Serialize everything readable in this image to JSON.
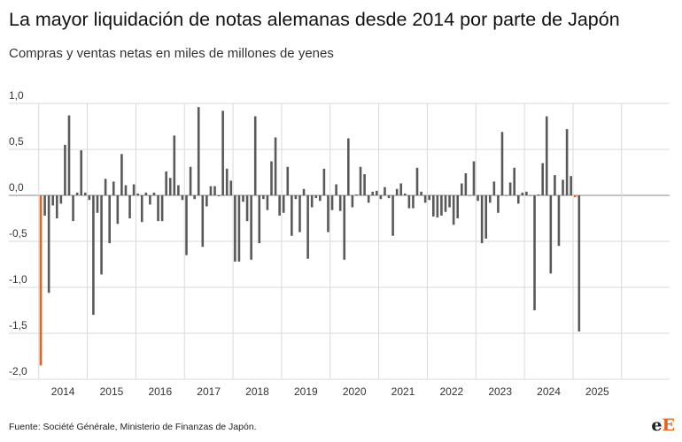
{
  "header": {
    "title": "La mayor liquidación de notas alemanas desde 2014 por parte de Japón",
    "subtitle": "Compras y ventas netas en miles de millones de yenes"
  },
  "footer": {
    "source": "Fuente: Société Générale, Ministerio de Finanzas de Japón.",
    "logo_e": "e",
    "logo_E": "E"
  },
  "colors": {
    "bar": "#595959",
    "highlight": "#e8641c"
  },
  "chart_data": {
    "type": "bar",
    "xlabel": "",
    "ylabel": "",
    "ylim": [
      -2.0,
      1.0
    ],
    "yticks": [
      -2.0,
      -1.5,
      -1.0,
      -0.5,
      0.0,
      0.5,
      1.0
    ],
    "ytick_labels": [
      "-2,0",
      "-1,5",
      "-1,0",
      "-0,5",
      "0,0",
      "0,5",
      "1,0"
    ],
    "year_labels": [
      "2014",
      "2015",
      "2016",
      "2017",
      "2018",
      "2019",
      "2020",
      "2021",
      "2022",
      "2023",
      "2024",
      "2025"
    ],
    "grid": "horizontal",
    "start": "2014-01",
    "frequency": "monthly",
    "highlighted_indices": [
      0,
      132
    ],
    "values": [
      -1.85,
      -0.22,
      -1.06,
      -0.11,
      -0.25,
      -0.09,
      0.55,
      0.87,
      -0.28,
      0.03,
      0.49,
      0.03,
      -0.05,
      -1.3,
      -0.19,
      -0.86,
      0.18,
      -0.52,
      0.15,
      -0.31,
      0.45,
      0.11,
      -0.25,
      0.12,
      0.02,
      -0.29,
      0.03,
      -0.1,
      0.03,
      -0.28,
      -0.28,
      0.26,
      0.19,
      0.65,
      0.11,
      -0.05,
      -0.65,
      0.31,
      -0.04,
      0.96,
      -0.56,
      -0.12,
      0.1,
      0.1,
      -0.01,
      0.92,
      0.29,
      0.16,
      -0.72,
      -0.72,
      -0.07,
      -0.28,
      -0.7,
      0.86,
      -0.52,
      -0.04,
      -0.16,
      0.37,
      0.63,
      -0.22,
      -0.19,
      0.31,
      -0.44,
      -0.04,
      -0.4,
      0.07,
      -0.69,
      -0.13,
      -0.03,
      -0.06,
      0.29,
      -0.4,
      -0.16,
      0.12,
      -0.17,
      -0.7,
      0.62,
      -0.13,
      0.01,
      0.31,
      0.23,
      -0.08,
      0.04,
      0.05,
      -0.04,
      0.09,
      -0.03,
      -0.44,
      0.07,
      0.13,
      0.02,
      -0.14,
      -0.14,
      0.3,
      0.04,
      -0.08,
      -0.05,
      -0.23,
      -0.24,
      -0.22,
      -0.18,
      -0.13,
      -0.32,
      -0.25,
      0.13,
      0.24,
      0.0,
      0.37,
      -0.06,
      -0.52,
      -0.47,
      -0.08,
      0.15,
      -0.19,
      0.69,
      0.0,
      0.14,
      0.3,
      -0.09,
      0.03,
      0.04,
      0.0,
      -1.25,
      0.01,
      0.35,
      0.86,
      -0.85,
      0.22,
      -0.55,
      0.17,
      0.72,
      0.21,
      -0.02,
      -1.48
    ]
  }
}
